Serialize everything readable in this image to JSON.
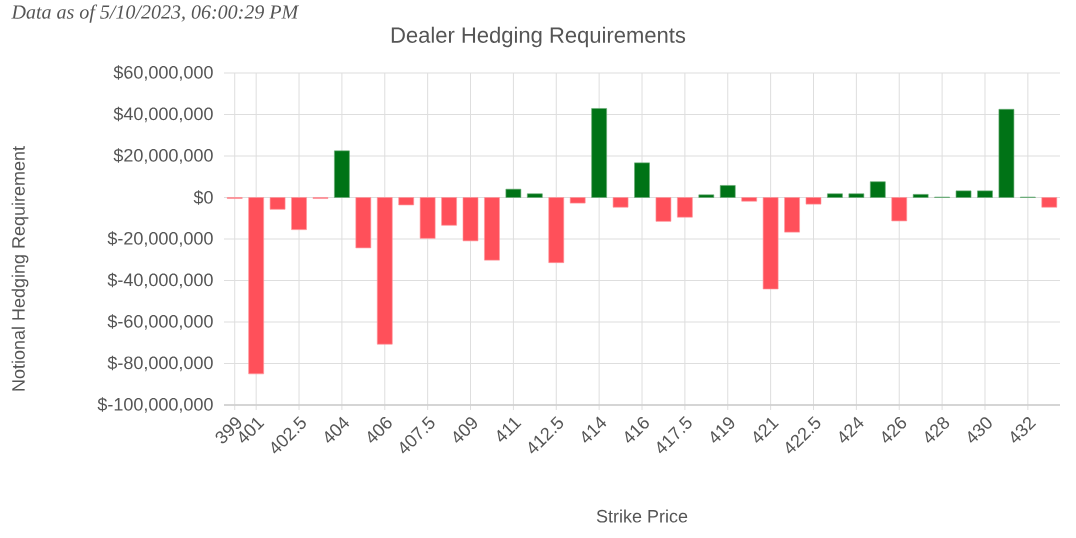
{
  "chart_data": {
    "type": "bar",
    "title": "Dealer Hedging Requirements",
    "xlabel": "Strike Price",
    "ylabel": "Notional Hedging Requirement",
    "annotations": [
      "Data as of 5/10/2023, 06:00:29 PM"
    ],
    "categories": [
      "399",
      "401",
      null,
      "402.5",
      null,
      "404",
      null,
      "406",
      null,
      "407.5",
      null,
      "409",
      null,
      "411",
      null,
      "412.5",
      null,
      "414",
      null,
      "416",
      null,
      "417.5",
      null,
      "419",
      null,
      "421",
      null,
      "422.5",
      null,
      "424",
      null,
      "426",
      null,
      "428",
      null,
      "430",
      null,
      "432",
      null
    ],
    "values": [
      -500000,
      -85000000,
      -5700000,
      -15500000,
      -500000,
      22500000,
      -24300000,
      -70700000,
      -3600000,
      -19700000,
      -13400000,
      -20900000,
      -30200000,
      4000000,
      1800000,
      -31400000,
      -2700000,
      42900000,
      -4700000,
      16700000,
      -11500000,
      -9500000,
      1300000,
      5800000,
      -1800000,
      -44100000,
      -16700000,
      -3200000,
      1800000,
      1800000,
      7600000,
      -11300000,
      1500000,
      200000,
      3200000,
      3200000,
      42500000,
      200000,
      -4700000
    ],
    "colors": [
      "#ff505a",
      "#ff505a",
      "#ff505a",
      "#ff505a",
      "#ff505a",
      "#007316",
      "#ff505a",
      "#ff505a",
      "#ff505a",
      "#ff505a",
      "#ff505a",
      "#ff505a",
      "#ff505a",
      "#007316",
      "#007316",
      "#ff505a",
      "#ff505a",
      "#007316",
      "#ff505a",
      "#007316",
      "#ff505a",
      "#ff505a",
      "#007316",
      "#007316",
      "#ff505a",
      "#ff505a",
      "#ff505a",
      "#ff505a",
      "#007316",
      "#007316",
      "#007316",
      "#ff505a",
      "#007316",
      "#007316",
      "#007316",
      "#007316",
      "#007316",
      "#007316",
      "#ff505a"
    ],
    "ylim": [
      -100000000,
      60000000
    ],
    "yticks": [
      {
        "value": -100000000,
        "label": "$-100,000,000"
      },
      {
        "value": -80000000,
        "label": "$-80,000,000"
      },
      {
        "value": -60000000,
        "label": "$-60,000,000"
      },
      {
        "value": -40000000,
        "label": "$-40,000,000"
      },
      {
        "value": -20000000,
        "label": "$-20,000,000"
      },
      {
        "value": 0,
        "label": "$0"
      },
      {
        "value": 20000000,
        "label": "$20,000,000"
      },
      {
        "value": 40000000,
        "label": "$40,000,000"
      },
      {
        "value": 60000000,
        "label": "$60,000,000"
      }
    ],
    "grid": true
  }
}
